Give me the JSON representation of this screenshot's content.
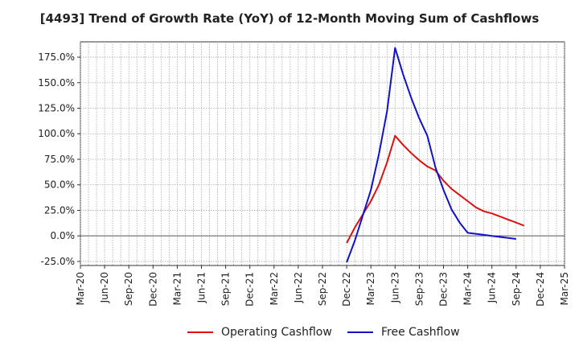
{
  "chart_data": {
    "type": "line",
    "title": "[4493]  Trend of Growth Rate (YoY) of 12-Month Moving Sum of Cashflows",
    "xlabel": "",
    "ylabel": "",
    "x_ticks": [
      "Mar-20",
      "Jun-20",
      "Sep-20",
      "Dec-20",
      "Mar-21",
      "Jun-21",
      "Sep-21",
      "Dec-21",
      "Mar-22",
      "Jun-22",
      "Sep-22",
      "Dec-22",
      "Mar-23",
      "Jun-23",
      "Sep-23",
      "Dec-23",
      "Mar-24",
      "Jun-24",
      "Sep-24",
      "Dec-24",
      "Mar-25"
    ],
    "y_ticks": [
      "-25.0%",
      "0.0%",
      "25.0%",
      "50.0%",
      "75.0%",
      "100.0%",
      "125.0%",
      "150.0%",
      "175.0%"
    ],
    "y_tick_values": [
      -25,
      0,
      25,
      50,
      75,
      100,
      125,
      150,
      175
    ],
    "ylim": [
      -29,
      190
    ],
    "grid": true,
    "legend_position": "bottom",
    "series": [
      {
        "name": "Operating Cashflow",
        "color": "#dd1111",
        "points": [
          [
            "Dec-22",
            -7
          ],
          [
            "Jan-23",
            8
          ],
          [
            "Feb-23",
            21
          ],
          [
            "Mar-23",
            34
          ],
          [
            "Apr-23",
            50
          ],
          [
            "May-23",
            72
          ],
          [
            "Jun-23",
            98
          ],
          [
            "Jul-23",
            89
          ],
          [
            "Aug-23",
            81
          ],
          [
            "Sep-23",
            74
          ],
          [
            "Oct-23",
            68
          ],
          [
            "Nov-23",
            64
          ],
          [
            "Dec-23",
            54
          ],
          [
            "Jan-24",
            46
          ],
          [
            "Feb-24",
            40
          ],
          [
            "Mar-24",
            34
          ],
          [
            "Apr-24",
            28
          ],
          [
            "May-24",
            24
          ],
          [
            "Jun-24",
            22
          ],
          [
            "Jul-24",
            19
          ],
          [
            "Aug-24",
            16
          ],
          [
            "Sep-24",
            13
          ],
          [
            "Oct-24",
            10
          ]
        ]
      },
      {
        "name": "Free Cashflow",
        "color": "#1111cc",
        "points": [
          [
            "Dec-22",
            -26
          ],
          [
            "Jan-23",
            -5
          ],
          [
            "Feb-23",
            20
          ],
          [
            "Mar-23",
            45
          ],
          [
            "Apr-23",
            80
          ],
          [
            "May-23",
            122
          ],
          [
            "Jun-23",
            184
          ],
          [
            "Jul-23",
            158
          ],
          [
            "Aug-23",
            135
          ],
          [
            "Sep-23",
            115
          ],
          [
            "Oct-23",
            98
          ],
          [
            "Nov-23",
            67
          ],
          [
            "Dec-23",
            45
          ],
          [
            "Jan-24",
            26
          ],
          [
            "Feb-24",
            13
          ],
          [
            "Mar-24",
            3
          ],
          [
            "Apr-24",
            2
          ],
          [
            "May-24",
            1
          ],
          [
            "Jun-24",
            0
          ],
          [
            "Jul-24",
            -1
          ],
          [
            "Aug-24",
            -2
          ],
          [
            "Sep-24",
            -3
          ]
        ]
      }
    ]
  }
}
